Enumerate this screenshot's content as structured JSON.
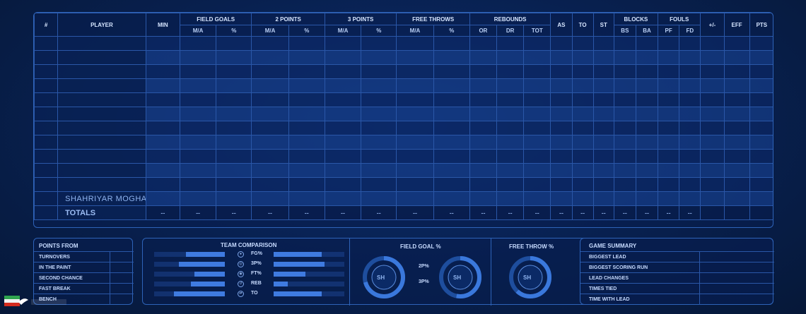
{
  "table": {
    "group_headers": {
      "num": "#",
      "player": "PLAYER",
      "min": "MIN",
      "field_goals": "FIELD GOALS",
      "two_points": "2 POINTS",
      "three_points": "3 POINTS",
      "free_throws": "FREE THROWS",
      "rebounds": "REBOUNDS",
      "as": "AS",
      "to": "TO",
      "st": "ST",
      "blocks": "BLOCKS",
      "fouls": "FOULS",
      "plus_minus": "+/-",
      "eff": "EFF",
      "pts": "PTS"
    },
    "sub_headers": {
      "fg_ma": "M/A",
      "fg_pct": "%",
      "p2_ma": "M/A",
      "p2_pct": "%",
      "p3_ma": "M/A",
      "p3_pct": "%",
      "ft_ma": "M/A",
      "ft_pct": "%",
      "or": "OR",
      "dr": "DR",
      "tot": "TOT",
      "bs": "BS",
      "ba": "BA",
      "pf": "PF",
      "fd": "FD"
    },
    "named_player": "SHAHRIYAR MOGHADDAMI",
    "totals": {
      "label": "TOTALS",
      "min": "--",
      "fg_ma": "--",
      "fg_pct": "--",
      "p2_ma": "--",
      "p2_pct": "--",
      "p3_ma": "--",
      "p3_pct": "--",
      "ft_ma": "--",
      "ft_pct": "--",
      "or": "--",
      "dr": "--",
      "tot": "--",
      "as": "--",
      "to": "--",
      "st": "--",
      "bs": "--",
      "ba": "--",
      "pf": "--",
      "fd": "--"
    }
  },
  "points_from": {
    "title": "POINTS FROM",
    "rows": [
      "TURNOVERS",
      "IN THE PAINT",
      "SECOND CHANCE",
      "FAST BREAK",
      "BENCH"
    ]
  },
  "team_comparison": {
    "title": "TEAM COMPARISON",
    "rows": [
      {
        "label": "FG%",
        "icon": "basketball-icon",
        "left": 0.55,
        "right": 0.68
      },
      {
        "label": "3P%",
        "icon": "target-icon",
        "left": 0.65,
        "right": 0.72
      },
      {
        "label": "FT%",
        "icon": "free-throw-icon",
        "left": 0.43,
        "right": 0.45
      },
      {
        "label": "REB",
        "icon": "rebound-icon",
        "left": 0.48,
        "right": 0.2
      },
      {
        "label": "TO",
        "icon": "turnover-icon",
        "left": 0.72,
        "right": 0.68
      }
    ]
  },
  "field_goal_pct": {
    "title": "FIELD GOAL %",
    "label_2p": "2P%",
    "label_3p": "3P%",
    "logo_text": "SH"
  },
  "free_throw_pct": {
    "title": "FREE THROW %",
    "logo_text": "SH"
  },
  "game_summary": {
    "title": "GAME SUMMARY",
    "rows": [
      "BIGGEST LEAD",
      "BIGGEST SCORING RUN",
      "LEAD CHANGES",
      "TIMES TIED",
      "TIME WITH LEAD"
    ]
  },
  "colors": {
    "background": "#08204f",
    "accent": "#3f7be0",
    "border": "#2a57a8"
  }
}
